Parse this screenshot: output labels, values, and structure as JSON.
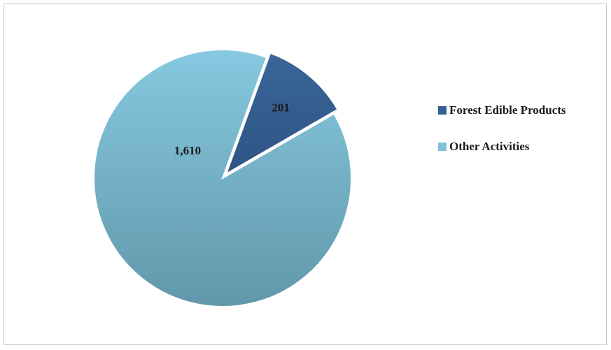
{
  "chart_data": {
    "type": "pie",
    "categories": [
      "Forest Edible Products",
      "Other Activities"
    ],
    "values": [
      201,
      1610
    ],
    "data_labels": [
      "201",
      "1,610"
    ],
    "colors": [
      "#355f91",
      "#7ec2d9"
    ],
    "legend_position": "right",
    "title": ""
  },
  "legend": {
    "items": [
      {
        "label": "Forest Edible Products",
        "color": "#355f91"
      },
      {
        "label": "Other Activities",
        "color": "#7ec2d9"
      }
    ]
  }
}
